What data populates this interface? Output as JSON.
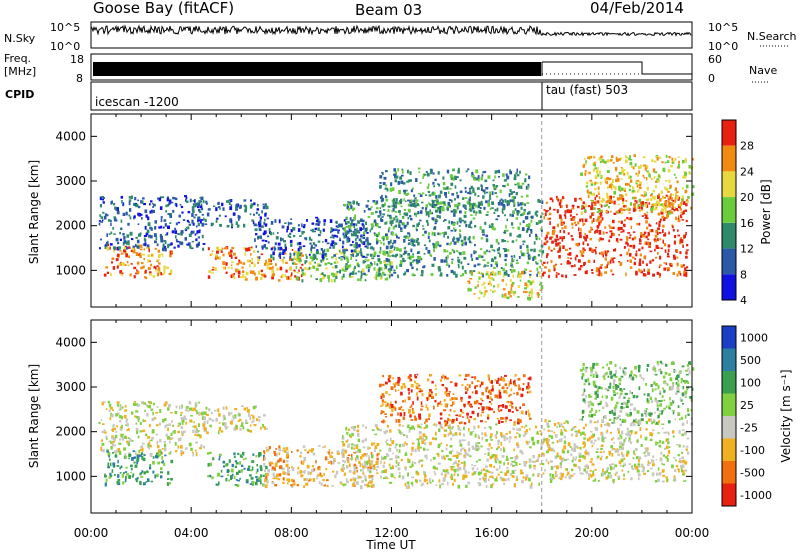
{
  "header": {
    "station": "Goose Bay (fitACF)",
    "beam": "Beam 03",
    "date": "04/Feb/2014"
  },
  "nsky_panel": {
    "label": "N.Sky",
    "left_ticks": [
      "10^5",
      "10^0"
    ],
    "right_ticks": [
      "10^5",
      "10^0"
    ],
    "right_label": "N.Search"
  },
  "freq_panel": {
    "label_line1": "Freq.",
    "label_line2": "[MHz]",
    "left_ticks": [
      "18",
      "8"
    ],
    "right_ticks": [
      "60",
      "0"
    ],
    "right_label": "Nave"
  },
  "cpid_panel": {
    "label": "CPID",
    "segments": [
      {
        "label": "icescan -1200",
        "start_hour": 0
      },
      {
        "label": "tau (fast) 503",
        "start_hour": 18
      }
    ]
  },
  "chart_data": [
    {
      "type": "heatmap",
      "quantity": "Power",
      "ylabel": "Slant Range [km]",
      "xlabel": "Time UT",
      "xlim": [
        0,
        24
      ],
      "ylim": [
        180,
        4500
      ],
      "x_ticks": [
        "00:00",
        "04:00",
        "08:00",
        "12:00",
        "16:00",
        "20:00",
        "00:00"
      ],
      "y_ticks": [
        1000,
        2000,
        3000,
        4000
      ],
      "colorbar": {
        "label": "Power [dB]",
        "ticks": [
          "4",
          "8",
          "12",
          "16",
          "20",
          "24",
          "28"
        ],
        "colors": [
          "#1010e0",
          "#2a5aa6",
          "#2e8a6a",
          "#6acb3c",
          "#e8d840",
          "#f08a10",
          "#e82010"
        ]
      },
      "echo_regions": [
        {
          "t0": 0.5,
          "t1": 3.2,
          "r0": 850,
          "r1": 1600,
          "level": 5
        },
        {
          "t0": 0.3,
          "t1": 4.5,
          "r0": 1500,
          "r1": 2700,
          "level": 1
        },
        {
          "t0": 4.0,
          "t1": 7.0,
          "r0": 2000,
          "r1": 2600,
          "level": 1
        },
        {
          "t0": 4.6,
          "t1": 8.5,
          "r0": 800,
          "r1": 1550,
          "level": 5
        },
        {
          "t0": 8.0,
          "t1": 12.0,
          "r0": 800,
          "r1": 1500,
          "level": 3
        },
        {
          "t0": 6.5,
          "t1": 11.0,
          "r0": 1300,
          "r1": 2200,
          "level": 1
        },
        {
          "t0": 10.0,
          "t1": 18.0,
          "r0": 900,
          "r1": 2600,
          "level": 2
        },
        {
          "t0": 11.5,
          "t1": 17.5,
          "r0": 2300,
          "r1": 3300,
          "level": 2
        },
        {
          "t0": 15.0,
          "t1": 18.0,
          "r0": 400,
          "r1": 1000,
          "level": 4
        },
        {
          "t0": 18.0,
          "t1": 23.8,
          "r0": 900,
          "r1": 2700,
          "level": 6
        },
        {
          "t0": 19.5,
          "t1": 24.0,
          "r0": 2300,
          "r1": 3600,
          "level": 4
        }
      ]
    },
    {
      "type": "heatmap",
      "quantity": "Velocity",
      "ylabel": "Slant Range [km]",
      "xlabel": "Time UT",
      "xlim": [
        0,
        24
      ],
      "ylim": [
        180,
        4500
      ],
      "x_ticks": [
        "00:00",
        "04:00",
        "08:00",
        "12:00",
        "16:00",
        "20:00",
        "00:00"
      ],
      "y_ticks": [
        1000,
        2000,
        3000,
        4000
      ],
      "colorbar": {
        "label": "Velocity [m s⁻¹]",
        "ticks": [
          "1000",
          "500",
          "100",
          "25",
          "-25",
          "-100",
          "-500",
          "-1000"
        ],
        "colors": [
          "#1a3fc4",
          "#2b7fa0",
          "#3aa050",
          "#80d040",
          "#c8c8c0",
          "#f0b020",
          "#f07010",
          "#e82010"
        ]
      },
      "echo_regions": [
        {
          "t0": 0.3,
          "t1": 4.5,
          "r0": 1500,
          "r1": 2700,
          "level": 4
        },
        {
          "t0": 0.5,
          "t1": 3.2,
          "r0": 850,
          "r1": 1600,
          "level": 2
        },
        {
          "t0": 4.0,
          "t1": 7.0,
          "r0": 2000,
          "r1": 2600,
          "level": 4
        },
        {
          "t0": 4.6,
          "t1": 7.0,
          "r0": 800,
          "r1": 1550,
          "level": 2
        },
        {
          "t0": 6.8,
          "t1": 11.5,
          "r0": 800,
          "r1": 1700,
          "level": 5
        },
        {
          "t0": 10.0,
          "t1": 18.0,
          "r0": 800,
          "r1": 2200,
          "level": 4
        },
        {
          "t0": 11.5,
          "t1": 17.5,
          "r0": 2200,
          "r1": 3300,
          "level": 6
        },
        {
          "t0": 18.0,
          "t1": 23.8,
          "r0": 900,
          "r1": 2300,
          "level": 4
        },
        {
          "t0": 19.5,
          "t1": 24.0,
          "r0": 2200,
          "r1": 3600,
          "level": 3
        }
      ]
    }
  ],
  "time_axis_label": "Time UT"
}
